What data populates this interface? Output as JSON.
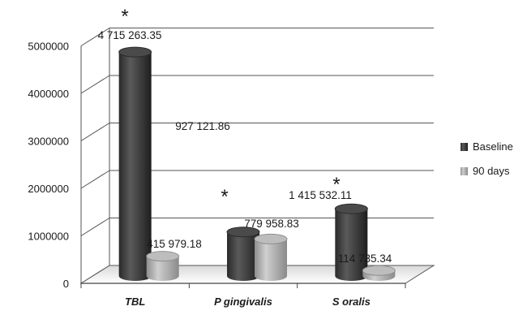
{
  "chart_data": {
    "type": "bar",
    "style": "3d-cylinder",
    "categories": [
      "TBL",
      "P gingivalis",
      "S oralis"
    ],
    "series": [
      {
        "name": "Baseline",
        "values": [
          4715263.35,
          927121.86,
          1415532.11
        ],
        "labels": [
          "4 715 263.35",
          "927 121.86",
          "1 415 532.11"
        ],
        "color": "#3a3a3a"
      },
      {
        "name": "90 days",
        "values": [
          415979.18,
          779958.83,
          114735.34
        ],
        "labels": [
          "415 979.18",
          "779 958.83",
          "114 735.34"
        ],
        "color": "#a6a6a6"
      }
    ],
    "annotations": [
      "*",
      "*",
      "*"
    ],
    "y_ticks": [
      "0",
      "1000000",
      "2000000",
      "3000000",
      "4000000",
      "5000000"
    ],
    "ylim": [
      0,
      5000000
    ],
    "grid": true,
    "legend": "right"
  }
}
